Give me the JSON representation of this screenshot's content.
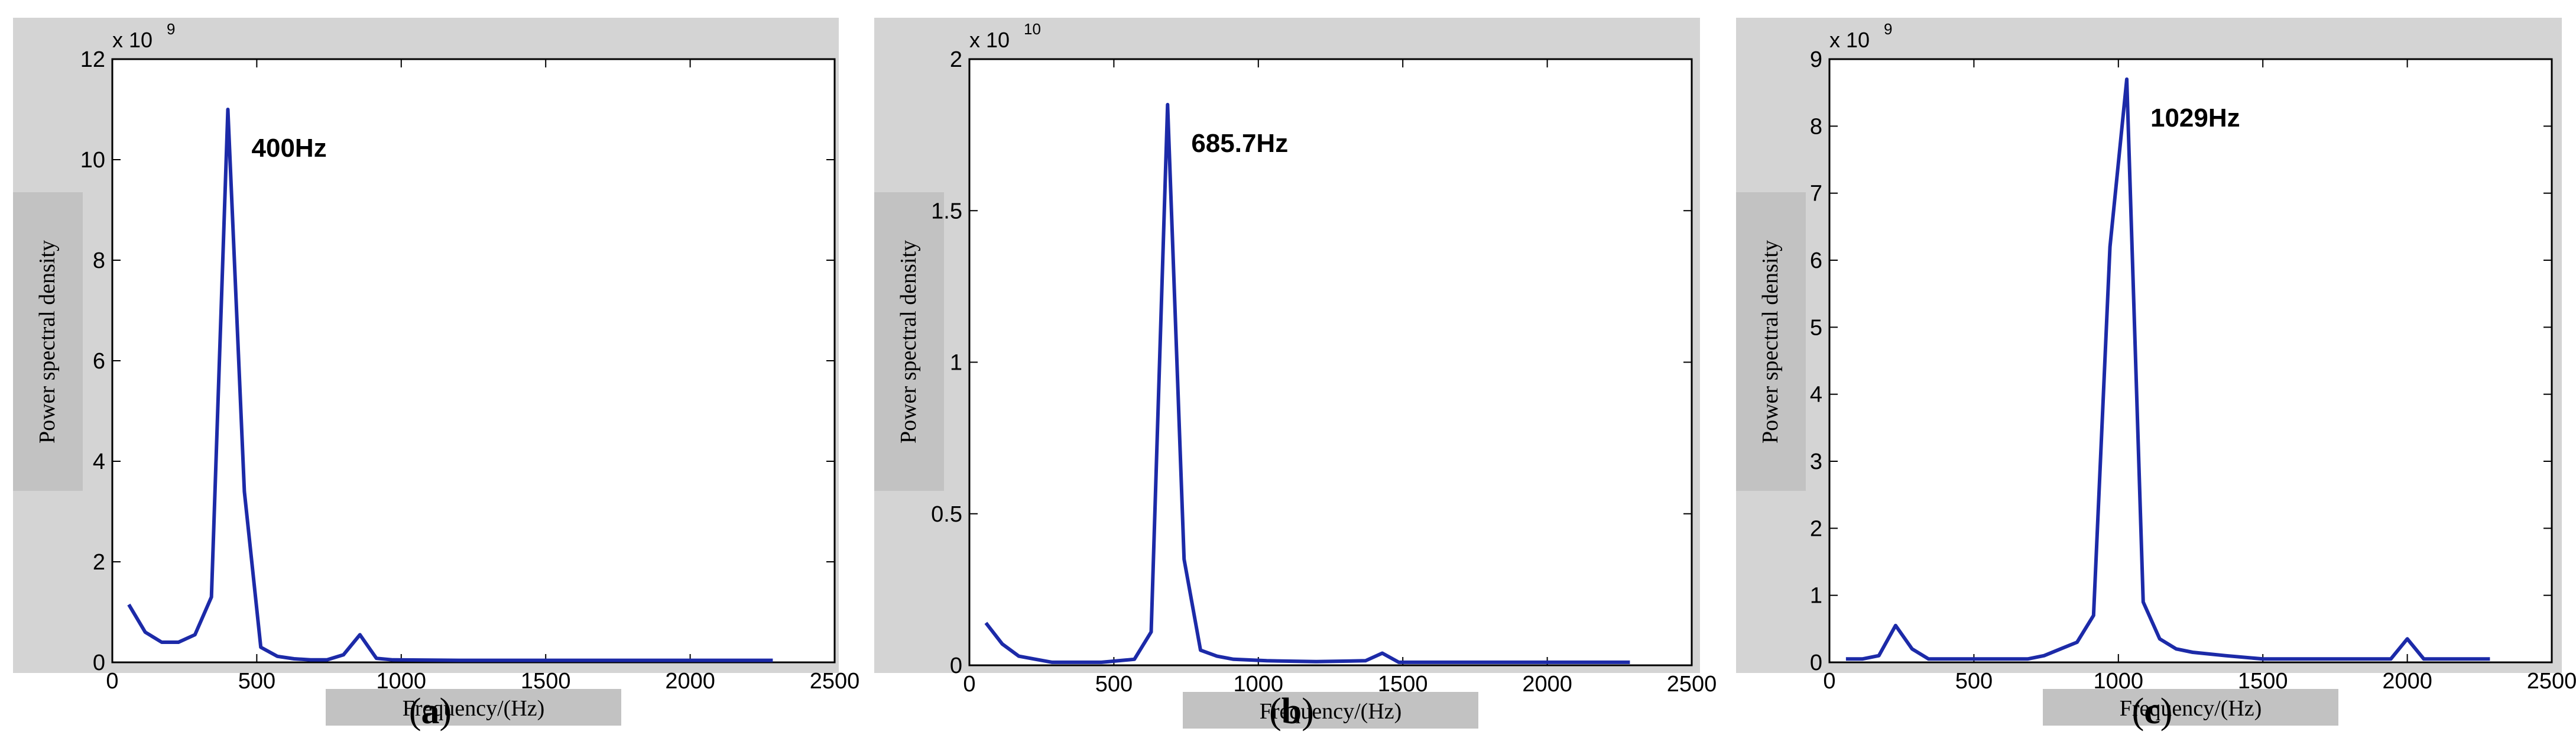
{
  "chart_data": [
    {
      "type": "line",
      "panel": "a",
      "caption": "a",
      "xlabel": "Frequency/(Hz)",
      "ylabel": "Power spectral density",
      "y_exponent": "x 10",
      "y_exponent_power": "9",
      "xlim": [
        0,
        2500
      ],
      "ylim": [
        0,
        12
      ],
      "xticks": [
        "0",
        "500",
        "1000",
        "1500",
        "2000",
        "2500"
      ],
      "yticks": [
        "0",
        "2",
        "4",
        "6",
        "8",
        "10",
        "12"
      ],
      "peak_label": "400Hz",
      "line_color": "#1c2aa8",
      "series": [
        {
          "x": [
            57,
            114,
            171,
            229,
            286,
            343,
            400,
            457,
            514,
            571,
            629,
            686,
            743,
            800,
            857,
            914,
            971,
            1200,
            1500,
            1800,
            2000,
            2286
          ],
          "y": [
            1.15,
            0.6,
            0.4,
            0.4,
            0.55,
            1.3,
            11.0,
            3.4,
            0.3,
            0.12,
            0.07,
            0.05,
            0.05,
            0.15,
            0.55,
            0.08,
            0.05,
            0.04,
            0.04,
            0.04,
            0.04,
            0.04
          ]
        }
      ]
    },
    {
      "type": "line",
      "panel": "b",
      "caption": "b",
      "xlabel": "Frequency/(Hz)",
      "ylabel": "Power spectral density",
      "y_exponent": "x 10",
      "y_exponent_power": "10",
      "xlim": [
        0,
        2500
      ],
      "ylim": [
        0,
        2
      ],
      "xticks": [
        "0",
        "500",
        "1000",
        "1500",
        "2000",
        "2500"
      ],
      "yticks": [
        "0",
        "0.5",
        "1",
        "1.5",
        "2"
      ],
      "peak_label": "685.7Hz",
      "line_color": "#1c2aa8",
      "series": [
        {
          "x": [
            57,
            114,
            171,
            229,
            286,
            343,
            457,
            571,
            629,
            686,
            743,
            800,
            857,
            914,
            1029,
            1200,
            1371,
            1429,
            1486,
            1600,
            2000,
            2286
          ],
          "y": [
            0.14,
            0.07,
            0.03,
            0.02,
            0.01,
            0.01,
            0.01,
            0.02,
            0.11,
            1.85,
            0.35,
            0.05,
            0.03,
            0.02,
            0.015,
            0.012,
            0.015,
            0.04,
            0.01,
            0.01,
            0.01,
            0.01
          ]
        }
      ]
    },
    {
      "type": "line",
      "panel": "c",
      "caption": "c",
      "xlabel": "Frequency/(Hz)",
      "ylabel": "Power spectral density",
      "y_exponent": "x 10",
      "y_exponent_power": "9",
      "xlim": [
        0,
        2500
      ],
      "ylim": [
        0,
        9
      ],
      "xticks": [
        "0",
        "500",
        "1000",
        "1500",
        "2000",
        "2500"
      ],
      "yticks": [
        "0",
        "1",
        "2",
        "3",
        "4",
        "5",
        "6",
        "7",
        "8",
        "9"
      ],
      "peak_label": "1029Hz",
      "line_color": "#1c2aa8",
      "series": [
        {
          "x": [
            57,
            114,
            171,
            229,
            286,
            343,
            400,
            571,
            686,
            743,
            800,
            857,
            914,
            971,
            1029,
            1086,
            1143,
            1200,
            1257,
            1371,
            1500,
            1800,
            1943,
            2000,
            2057,
            2286
          ],
          "y": [
            0.05,
            0.05,
            0.1,
            0.55,
            0.2,
            0.05,
            0.05,
            0.05,
            0.05,
            0.1,
            0.2,
            0.3,
            0.7,
            6.2,
            8.7,
            0.9,
            0.35,
            0.2,
            0.15,
            0.1,
            0.05,
            0.05,
            0.05,
            0.35,
            0.05,
            0.05
          ]
        }
      ]
    }
  ]
}
